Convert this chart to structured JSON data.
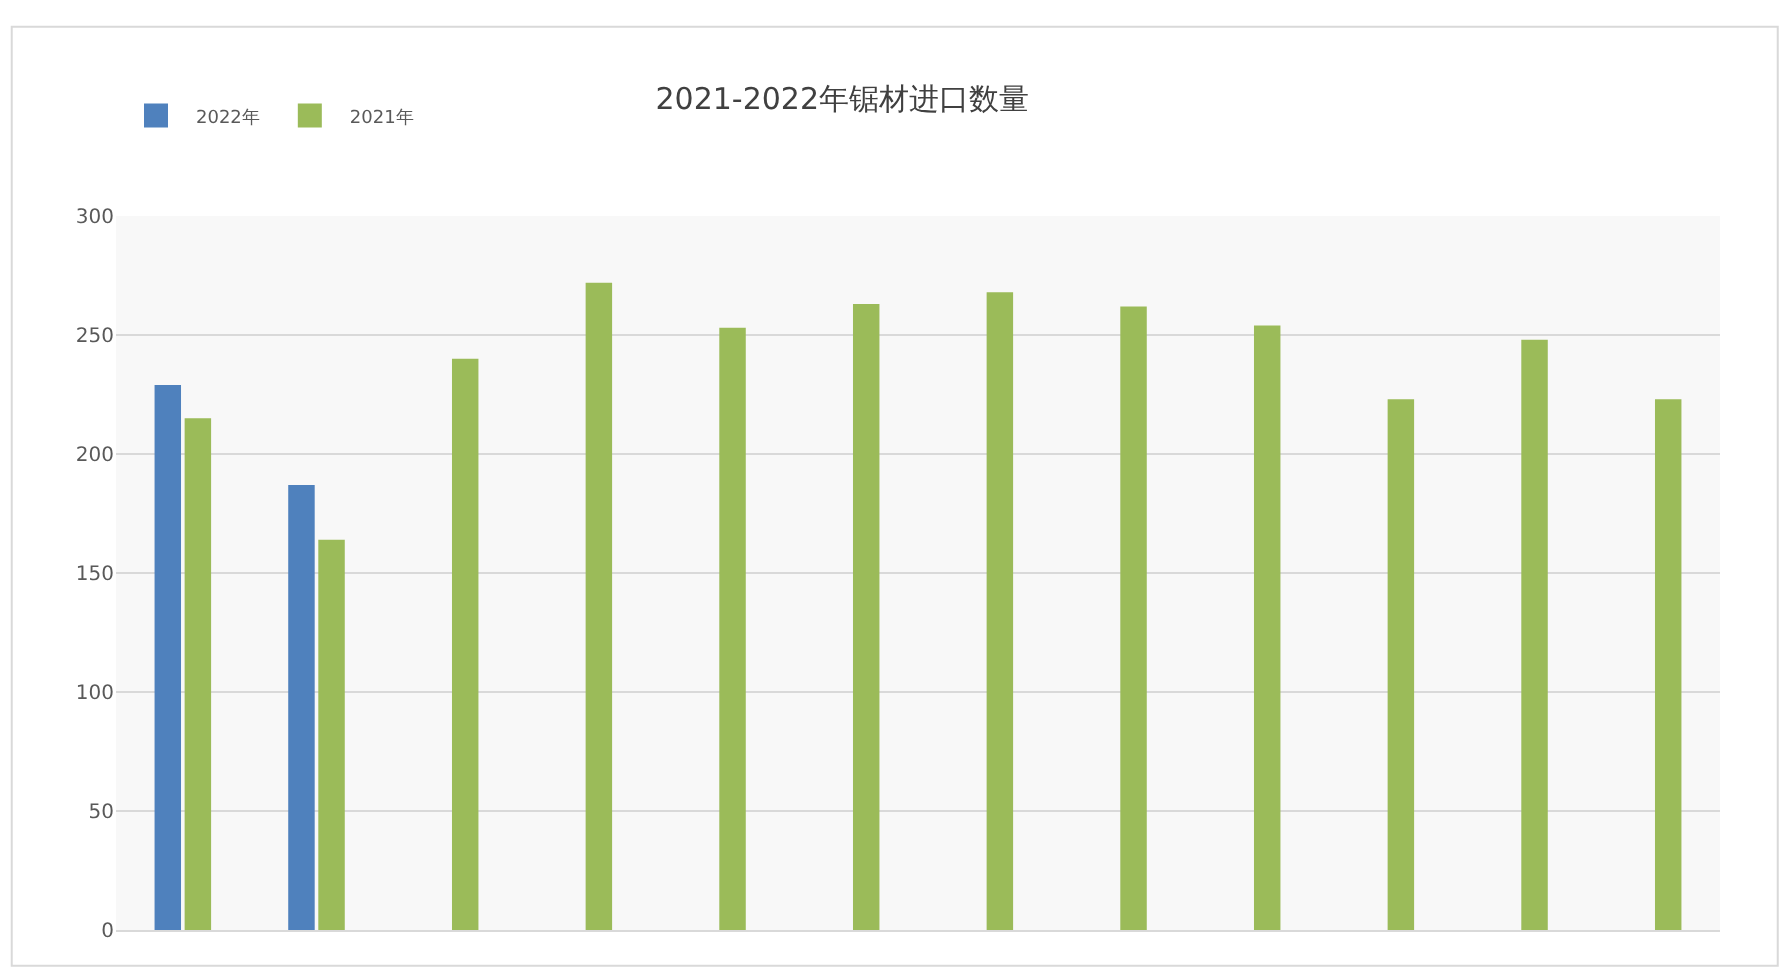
{
  "chart_data": {
    "type": "bar",
    "title": "2021-2022年锯材进口数量",
    "categories": [
      null,
      null,
      null,
      null,
      null,
      null,
      null,
      null,
      null,
      null,
      null,
      null
    ],
    "series": [
      {
        "name": "2022年",
        "color": "#4f81bd",
        "values": [
          229,
          187,
          null,
          null,
          null,
          null,
          null,
          null,
          null,
          null,
          null,
          null
        ]
      },
      {
        "name": "2021年",
        "color": "#9bbb59",
        "values": [
          215,
          164,
          240,
          272,
          253,
          263,
          268,
          262,
          254,
          223,
          248,
          223
        ]
      }
    ],
    "ylim": [
      0,
      300
    ],
    "yticks": [
      0,
      50,
      100,
      150,
      200,
      250,
      300
    ],
    "grid": "y",
    "legend": "top left",
    "tick_labels": "y"
  }
}
